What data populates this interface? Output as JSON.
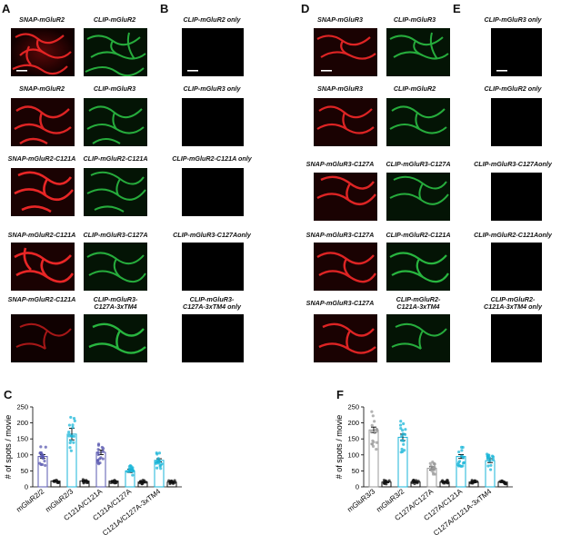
{
  "panel_letters": {
    "A": "A",
    "B": "B",
    "C": "C",
    "D": "D",
    "E": "E",
    "F": "F"
  },
  "left_rows": [
    {
      "red": "SNAP-mGluR2",
      "green": "CLIP-mGluR2",
      "only": "CLIP-mGluR2 only"
    },
    {
      "red": "SNAP-mGluR2",
      "green": "CLIP-mGluR3",
      "only": "CLIP-mGluR3 only"
    },
    {
      "red": "SNAP-mGluR2-C121A",
      "green": "CLIP-mGluR2-C121A",
      "only": "CLIP-mGluR2-C121A only"
    },
    {
      "red": "SNAP-mGluR2-C121A",
      "green": "CLIP-mGluR3-C127A",
      "only": "CLIP-mGluR3-C127Aonly"
    },
    {
      "red": "SNAP-mGluR2-C121A",
      "green": "CLIP-mGluR3-\nC127A-3xTM4",
      "only": "CLIP-mGluR3-\nC127A-3xTM4 only"
    }
  ],
  "right_rows": [
    {
      "red": "SNAP-mGluR3",
      "green": "CLIP-mGluR3",
      "only": "CLIP-mGluR3 only"
    },
    {
      "red": "SNAP-mGluR3",
      "green": "CLIP-mGluR2",
      "only": "CLIP-mGluR2 only"
    },
    {
      "red": "SNAP-mGluR3-C127A",
      "green": "CLIP-mGluR3-C127A",
      "only": "CLIP-mGluR3-C127Aonly"
    },
    {
      "red": "SNAP-mGluR3-C127A",
      "green": "CLIP-mGluR2-C121A",
      "only": "CLIP-mGluR2-C121Aonly"
    },
    {
      "red": "SNAP-mGluR3-C127A",
      "green": "CLIP-mGluR2-\nC121A-3xTM4",
      "only": "CLIP-mGluR2-\nC121A-3xTM4 only"
    }
  ],
  "colors": {
    "red": "#e0202a",
    "green": "#2fb83e",
    "purple": "#5a58b0",
    "cyan": "#1ab5d8",
    "gray": "#9a9a9a",
    "black": "#111111"
  },
  "chart_data": [
    {
      "type": "bar",
      "panel": "C",
      "ylabel": "# of spots / movie",
      "ylim": [
        0,
        250
      ],
      "yticks": [
        0,
        50,
        100,
        150,
        200,
        250
      ],
      "categories": [
        "mGluR2/2",
        "",
        "mGluR2/3",
        "",
        "C121A/C121A",
        "",
        "C121A/C127A",
        "",
        "C121A/C127A-3xTM4",
        ""
      ],
      "values": [
        95,
        18,
        165,
        18,
        108,
        18,
        50,
        15,
        83,
        15
      ],
      "errors": [
        6,
        2,
        18,
        2,
        7,
        2,
        5,
        2,
        5,
        2
      ],
      "bar_colors": [
        "purple",
        "black",
        "cyan",
        "black",
        "purple",
        "black",
        "cyan",
        "black",
        "cyan",
        "black"
      ]
    },
    {
      "type": "bar",
      "panel": "F",
      "ylabel": "# of spots / movie",
      "ylim": [
        0,
        250
      ],
      "yticks": [
        0,
        50,
        100,
        150,
        200,
        250
      ],
      "categories": [
        "mGluR3/3",
        "",
        "mGluR3/2",
        "",
        "C127A/C127A",
        "",
        "C127A/C121A",
        "",
        "C127A/C121A-3xTM4",
        ""
      ],
      "values": [
        178,
        15,
        155,
        15,
        58,
        15,
        95,
        15,
        82,
        15
      ],
      "errors": [
        9,
        2,
        10,
        2,
        5,
        2,
        6,
        2,
        6,
        2
      ],
      "bar_colors": [
        "gray",
        "black",
        "cyan",
        "black",
        "gray",
        "black",
        "cyan",
        "black",
        "cyan",
        "black"
      ]
    }
  ]
}
